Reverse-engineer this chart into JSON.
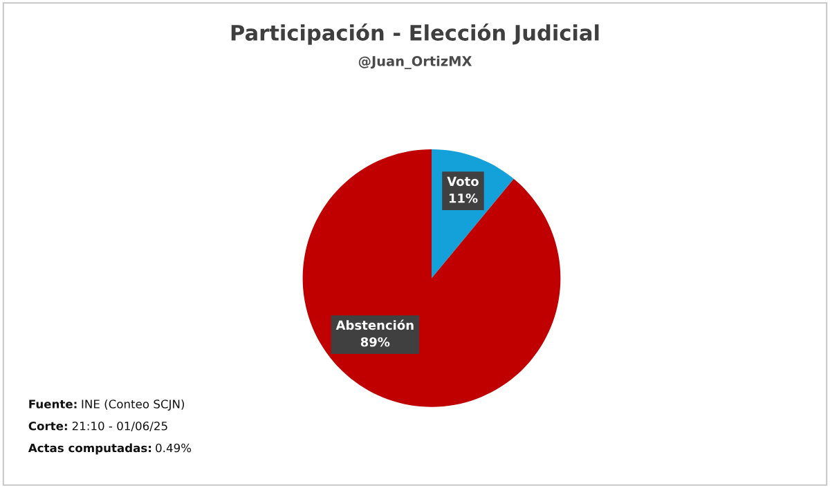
{
  "chart_data": {
    "type": "pie",
    "title": "Participación - Elección Judicial",
    "subtitle": "@Juan_OrtizMX",
    "categories": [
      "Voto",
      "Abstención"
    ],
    "values": [
      11,
      89
    ],
    "colors": [
      "#14a0d8",
      "#c00000"
    ],
    "value_labels": [
      "11%",
      "89%"
    ],
    "legend": false,
    "annotations": [
      "Fuente: INE (Conteo SCJN)",
      "Corte: 21:10 - 01/06/25",
      "Actas computadas: 0.49%"
    ]
  }
}
